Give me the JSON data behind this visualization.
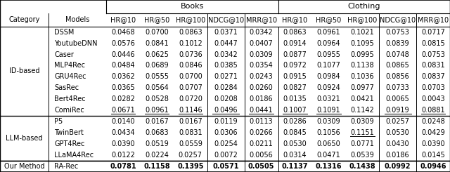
{
  "header_row": [
    "HR@10",
    "HR@50",
    "HR@100",
    "NDCG@10",
    "MRR@10",
    "HR@10",
    "HR@50",
    "HR@100",
    "NDCG@10",
    "MRR@10"
  ],
  "sections": [
    {
      "category": "ID-based",
      "models": [
        "DSSM",
        "YoutubeDNN",
        "Caser",
        "MLP4Rec",
        "GRU4Rec",
        "SasRec",
        "Bert4Rec",
        "ComiRec"
      ],
      "data": [
        [
          0.0468,
          0.07,
          0.0863,
          0.0371,
          0.0342,
          0.0863,
          0.0961,
          0.1021,
          0.0753,
          0.0717
        ],
        [
          0.0576,
          0.0841,
          0.1012,
          0.0447,
          0.0407,
          0.0914,
          0.0964,
          0.1095,
          0.0839,
          0.0815
        ],
        [
          0.0446,
          0.0625,
          0.0736,
          0.0342,
          0.0309,
          0.0877,
          0.0955,
          0.0995,
          0.0748,
          0.0753
        ],
        [
          0.0484,
          0.0689,
          0.0846,
          0.0385,
          0.0354,
          0.0972,
          0.1077,
          0.1138,
          0.0865,
          0.0831
        ],
        [
          0.0362,
          0.0555,
          0.07,
          0.0271,
          0.0243,
          0.0915,
          0.0984,
          0.1036,
          0.0856,
          0.0837
        ],
        [
          0.0365,
          0.0564,
          0.0707,
          0.0284,
          0.026,
          0.0827,
          0.0924,
          0.0977,
          0.0733,
          0.0703
        ],
        [
          0.0282,
          0.0528,
          0.072,
          0.0208,
          0.0186,
          0.0135,
          0.0321,
          0.0421,
          0.0065,
          0.0043
        ],
        [
          0.0671,
          0.0961,
          0.1146,
          0.0496,
          0.0441,
          0.1007,
          0.1091,
          0.1142,
          0.0919,
          0.0881
        ]
      ],
      "underlined": [
        [
          false,
          false,
          false,
          false,
          false,
          false,
          false,
          false,
          false,
          false
        ],
        [
          false,
          false,
          false,
          false,
          false,
          false,
          false,
          false,
          false,
          false
        ],
        [
          false,
          false,
          false,
          false,
          false,
          false,
          false,
          false,
          false,
          false
        ],
        [
          false,
          false,
          false,
          false,
          false,
          false,
          false,
          false,
          false,
          false
        ],
        [
          false,
          false,
          false,
          false,
          false,
          false,
          false,
          false,
          false,
          false
        ],
        [
          false,
          false,
          false,
          false,
          false,
          false,
          false,
          false,
          false,
          false
        ],
        [
          false,
          false,
          false,
          false,
          false,
          false,
          false,
          false,
          false,
          false
        ],
        [
          true,
          true,
          true,
          true,
          true,
          true,
          true,
          false,
          true,
          true
        ]
      ]
    },
    {
      "category": "LLM-based",
      "models": [
        "P5",
        "TwinBert",
        "GPT4Rec",
        "LLaMA4Rec"
      ],
      "data": [
        [
          0.014,
          0.0167,
          0.0167,
          0.0119,
          0.0113,
          0.0286,
          0.0309,
          0.0309,
          0.0257,
          0.0248
        ],
        [
          0.0434,
          0.0683,
          0.0831,
          0.0306,
          0.0266,
          0.0845,
          0.1056,
          0.1151,
          0.053,
          0.0429
        ],
        [
          0.039,
          0.0519,
          0.0559,
          0.0254,
          0.0211,
          0.053,
          0.065,
          0.0771,
          0.043,
          0.039
        ],
        [
          0.0122,
          0.0224,
          0.0257,
          0.0072,
          0.0056,
          0.0314,
          0.0471,
          0.0539,
          0.0186,
          0.0145
        ]
      ],
      "underlined": [
        [
          false,
          false,
          false,
          false,
          false,
          false,
          false,
          false,
          false,
          false
        ],
        [
          false,
          false,
          false,
          false,
          false,
          false,
          false,
          true,
          false,
          false
        ],
        [
          false,
          false,
          false,
          false,
          false,
          false,
          false,
          false,
          false,
          false
        ],
        [
          false,
          false,
          false,
          false,
          false,
          false,
          false,
          false,
          false,
          false
        ]
      ]
    }
  ],
  "our_method": {
    "category": "Our Method",
    "model": "RA-Rec",
    "data": [
      0.0781,
      0.1158,
      0.1395,
      0.0571,
      0.0505,
      0.1137,
      0.1316,
      0.1438,
      0.0992,
      0.0946
    ]
  },
  "font_size": 7.0,
  "header_font_size": 7.0,
  "group_font_size": 8.0
}
